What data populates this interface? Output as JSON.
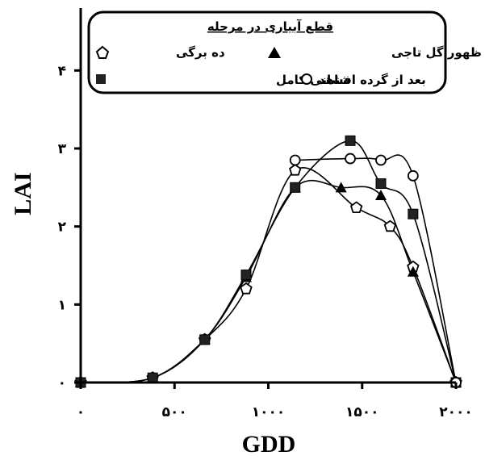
{
  "chart_data": {
    "type": "line",
    "title": "",
    "xlabel": "GDD",
    "ylabel": "LAI",
    "xlim": [
      0,
      2000
    ],
    "ylim": [
      0,
      4.8
    ],
    "x_ticks": [
      0,
      500,
      1000,
      1500,
      2000
    ],
    "x_tick_labels": [
      "۰",
      "۵۰۰",
      "۱۰۰۰",
      "۱۵۰۰",
      "۲۰۰۰"
    ],
    "y_ticks": [
      0,
      1,
      2,
      3,
      4
    ],
    "y_tick_labels": [
      "۰",
      "۱",
      "۲",
      "۳",
      "۴"
    ],
    "grid": false,
    "legend": {
      "title": "قطع آبیاری در مرحله",
      "placement": "top"
    },
    "series": [
      {
        "name": "ده برگی",
        "marker": "pentagon-open",
        "x": [
          0,
          470,
          810,
          1080,
          1400,
          1800,
          2020,
          2170,
          2450
        ],
        "y": [
          0.0,
          0.06,
          0.55,
          1.2,
          2.72,
          2.24,
          2.0,
          1.48,
          0.0
        ]
      },
      {
        "name": "زمان ظهور گل تاجی",
        "marker": "triangle-filled",
        "x": [
          0,
          470,
          810,
          1080,
          1400,
          1700,
          1960,
          2170,
          2450
        ],
        "y": [
          0.0,
          0.06,
          0.55,
          1.35,
          2.5,
          2.5,
          2.4,
          1.42,
          0.0
        ]
      },
      {
        "name": "بعد از گرده افشانی کامل",
        "marker": "square-filled",
        "x": [
          0,
          470,
          810,
          1080,
          1400,
          1760,
          1960,
          2170,
          2450
        ],
        "y": [
          0.0,
          0.06,
          0.55,
          1.38,
          2.5,
          3.1,
          2.55,
          2.16,
          0.0
        ]
      },
      {
        "name": "شاهد",
        "marker": "circle-open",
        "x": [
          1400,
          1760,
          1960,
          2170,
          2450
        ],
        "y": [
          2.85,
          2.87,
          2.85,
          2.65,
          0.0
        ]
      }
    ]
  }
}
